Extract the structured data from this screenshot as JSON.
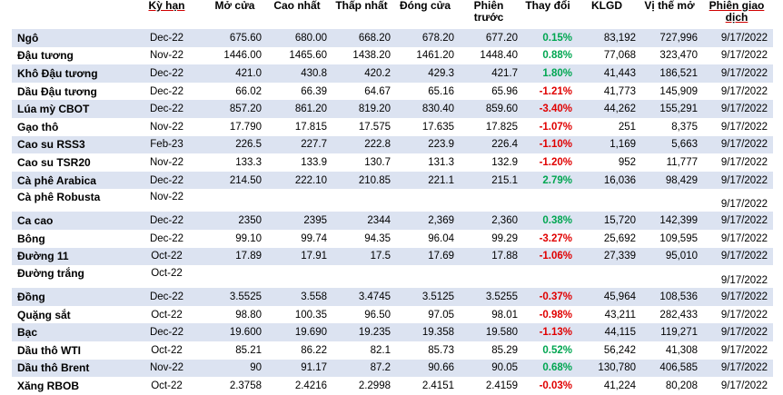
{
  "headers": [
    "",
    "Kỳ hạn",
    "Mở cửa",
    "Cao nhất",
    "Thấp nhất",
    "Đóng cửa",
    "Phiên trước",
    "Thay đổi",
    "KLGD",
    "Vị thế mở",
    "Phiên giao dịch"
  ],
  "rows": [
    {
      "name": "Ngô",
      "term": "Dec-22",
      "open": "675.60",
      "high": "680.00",
      "low": "668.20",
      "close": "678.20",
      "prev": "677.20",
      "change": "0.15%",
      "dir": "up",
      "volume": "83,192",
      "oi": "727,996",
      "date": "9/17/2022"
    },
    {
      "name": "Đậu tương",
      "term": "Nov-22",
      "open": "1446.00",
      "high": "1465.60",
      "low": "1438.20",
      "close": "1461.20",
      "prev": "1448.40",
      "change": "0.88%",
      "dir": "up",
      "volume": "77,068",
      "oi": "323,470",
      "date": "9/17/2022"
    },
    {
      "name": "Khô Đậu tương",
      "term": "Dec-22",
      "open": "421.0",
      "high": "430.8",
      "low": "420.2",
      "close": "429.3",
      "prev": "421.7",
      "change": "1.80%",
      "dir": "up",
      "volume": "41,443",
      "oi": "186,521",
      "date": "9/17/2022"
    },
    {
      "name": "Dầu Đậu tương",
      "term": "Dec-22",
      "open": "66.02",
      "high": "66.39",
      "low": "64.67",
      "close": "65.16",
      "prev": "65.96",
      "change": "-1.21%",
      "dir": "down",
      "volume": "41,773",
      "oi": "145,909",
      "date": "9/17/2022"
    },
    {
      "name": "Lúa mỳ CBOT",
      "term": "Dec-22",
      "open": "857.20",
      "high": "861.20",
      "low": "819.20",
      "close": "830.40",
      "prev": "859.60",
      "change": "-3.40%",
      "dir": "down",
      "volume": "44,262",
      "oi": "155,291",
      "date": "9/17/2022"
    },
    {
      "name": "Gạo thô",
      "term": "Nov-22",
      "open": "17.790",
      "high": "17.815",
      "low": "17.575",
      "close": "17.635",
      "prev": "17.825",
      "change": "-1.07%",
      "dir": "down",
      "volume": "251",
      "oi": "8,375",
      "date": "9/17/2022"
    },
    {
      "name": "Cao su RSS3",
      "term": "Feb-23",
      "open": "226.5",
      "high": "227.7",
      "low": "222.8",
      "close": "223.9",
      "prev": "226.4",
      "change": "-1.10%",
      "dir": "down",
      "volume": "1,169",
      "oi": "5,663",
      "date": "9/17/2022"
    },
    {
      "name": "Cao su TSR20",
      "term": "Nov-22",
      "open": "133.3",
      "high": "133.9",
      "low": "130.7",
      "close": "131.3",
      "prev": "132.9",
      "change": "-1.20%",
      "dir": "down",
      "volume": "952",
      "oi": "11,777",
      "date": "9/17/2022"
    },
    {
      "name": "Cà phê Arabica",
      "term": "Dec-22",
      "open": "214.50",
      "high": "222.10",
      "low": "210.85",
      "close": "221.1",
      "prev": "215.1",
      "change": "2.79%",
      "dir": "up",
      "volume": "16,036",
      "oi": "98,429",
      "date": "9/17/2022"
    },
    {
      "name": "Cà phê Robusta",
      "term": "Nov-22",
      "open": "",
      "high": "",
      "low": "",
      "close": "",
      "prev": "",
      "change": "",
      "dir": "none",
      "volume": "",
      "oi": "",
      "date": "9/17/2022"
    },
    {
      "name": "Ca cao",
      "term": "Dec-22",
      "open": "2350",
      "high": "2395",
      "low": "2344",
      "close": "2,369",
      "prev": "2,360",
      "change": "0.38%",
      "dir": "up",
      "volume": "15,720",
      "oi": "142,399",
      "date": "9/17/2022"
    },
    {
      "name": "Bông",
      "term": "Dec-22",
      "open": "99.10",
      "high": "99.74",
      "low": "94.35",
      "close": "96.04",
      "prev": "99.29",
      "change": "-3.27%",
      "dir": "down",
      "volume": "25,692",
      "oi": "109,595",
      "date": "9/17/2022"
    },
    {
      "name": "Đường 11",
      "term": "Oct-22",
      "open": "17.89",
      "high": "17.91",
      "low": "17.5",
      "close": "17.69",
      "prev": "17.88",
      "change": "-1.06%",
      "dir": "down",
      "volume": "27,339",
      "oi": "95,010",
      "date": "9/17/2022"
    },
    {
      "name": "Đường trắng",
      "term": "Oct-22",
      "open": "",
      "high": "",
      "low": "",
      "close": "",
      "prev": "",
      "change": "",
      "dir": "none",
      "volume": "",
      "oi": "",
      "date": "9/17/2022"
    },
    {
      "name": "Đồng",
      "term": "Dec-22",
      "open": "3.5525",
      "high": "3.558",
      "low": "3.4745",
      "close": "3.5125",
      "prev": "3.5255",
      "change": "-0.37%",
      "dir": "down",
      "volume": "45,964",
      "oi": "108,536",
      "date": "9/17/2022"
    },
    {
      "name": "Quặng sắt",
      "term": "Oct-22",
      "open": "98.80",
      "high": "100.35",
      "low": "96.50",
      "close": "97.05",
      "prev": "98.01",
      "change": "-0.98%",
      "dir": "down",
      "volume": "43,211",
      "oi": "282,433",
      "date": "9/17/2022"
    },
    {
      "name": "Bạc",
      "term": "Dec-22",
      "open": "19.600",
      "high": "19.690",
      "low": "19.235",
      "close": "19.358",
      "prev": "19.580",
      "change": "-1.13%",
      "dir": "down",
      "volume": "44,115",
      "oi": "119,271",
      "date": "9/17/2022"
    },
    {
      "name": "Dầu thô WTI",
      "term": "Oct-22",
      "open": "85.21",
      "high": "86.22",
      "low": "82.1",
      "close": "85.73",
      "prev": "85.29",
      "change": "0.52%",
      "dir": "up",
      "volume": "56,242",
      "oi": "41,308",
      "date": "9/17/2022"
    },
    {
      "name": "Dầu thô Brent",
      "term": "Nov-22",
      "open": "90",
      "high": "91.17",
      "low": "87.2",
      "close": "90.66",
      "prev": "90.05",
      "change": "0.68%",
      "dir": "up",
      "volume": "130,780",
      "oi": "406,585",
      "date": "9/17/2022"
    },
    {
      "name": "Xăng RBOB",
      "term": "Oct-22",
      "open": "2.3758",
      "high": "2.4216",
      "low": "2.2998",
      "close": "2.4151",
      "prev": "2.4159",
      "change": "-0.03%",
      "dir": "down",
      "volume": "41,224",
      "oi": "80,208",
      "date": "9/17/2022"
    }
  ]
}
